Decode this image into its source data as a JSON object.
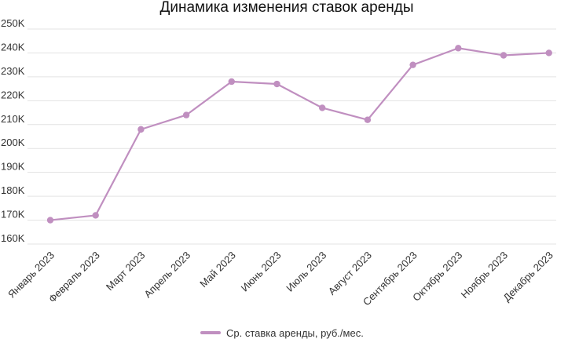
{
  "chart_data": {
    "type": "line",
    "title": "Динамика изменения ставок аренды",
    "xlabel": "",
    "ylabel": "",
    "categories": [
      "Январь 2023",
      "Февраль 2023",
      "Март 2023",
      "Апрель 2023",
      "Май 2023",
      "Июнь 2023",
      "Июль 2023",
      "Август 2023",
      "Сентябрь 2023",
      "Октябрь 2023",
      "Ноябрь 2023",
      "Декабрь 2023"
    ],
    "series": [
      {
        "name": "Ср. ставка аренды, руб./мес.",
        "color": "#c08fc0",
        "values": [
          170000,
          172000,
          208000,
          214000,
          228000,
          227000,
          217000,
          212000,
          235000,
          242000,
          239000,
          240000
        ]
      }
    ],
    "ylim": [
      160000,
      250000
    ],
    "y_ticks": [
      160000,
      170000,
      180000,
      190000,
      200000,
      210000,
      220000,
      230000,
      240000,
      250000
    ],
    "y_tick_labels": [
      "160K",
      "170K",
      "180K",
      "190K",
      "200K",
      "210K",
      "220K",
      "230K",
      "240K",
      "250K"
    ],
    "grid": true,
    "legend_position": "bottom-center"
  }
}
